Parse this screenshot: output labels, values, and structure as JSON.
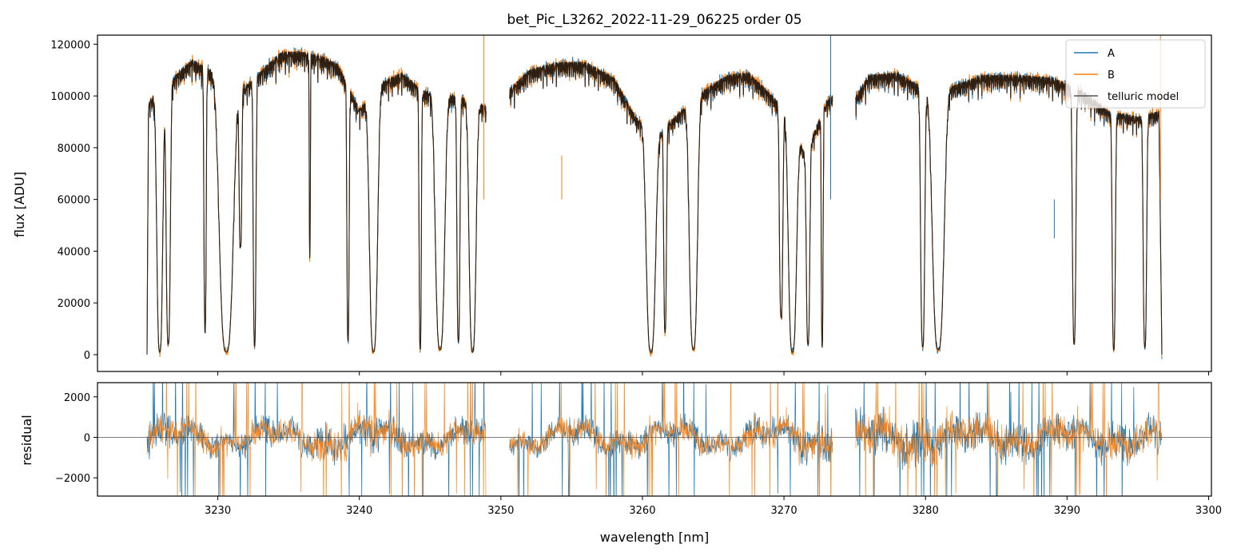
{
  "chart_data": {
    "type": "line",
    "title": "bet_Pic_L3262_2022-11-29_06225  order 05",
    "xlabel": "wavelength [nm]",
    "xlim": [
      3221.5,
      3300.2
    ],
    "xticks": [
      3230,
      3240,
      3250,
      3260,
      3270,
      3280,
      3290,
      3300
    ],
    "colors": {
      "A": "#1f77b4",
      "B": "#ff7f0e",
      "model": "#000000"
    },
    "legend": {
      "placement": "top-right",
      "entries": [
        "A",
        "B",
        "telluric model"
      ]
    },
    "panels": [
      {
        "name": "flux",
        "ylabel": "flux [ADU]",
        "ylim": [
          -6500,
          123500
        ],
        "yticks": [
          0,
          20000,
          40000,
          60000,
          80000,
          100000,
          120000
        ],
        "envelope": [
          [
            3225.0,
            0
          ],
          [
            3225.1,
            97000
          ],
          [
            3225.4,
            100000
          ],
          [
            3225.8,
            96000
          ],
          [
            3227.0,
            108000
          ],
          [
            3228.2,
            114000
          ],
          [
            3229.5,
            110000
          ],
          [
            3230.5,
            108000
          ],
          [
            3232.0,
            104000
          ],
          [
            3233.5,
            112000
          ],
          [
            3234.5,
            117000
          ],
          [
            3236.0,
            117000
          ],
          [
            3237.5,
            115000
          ],
          [
            3238.5,
            112000
          ],
          [
            3240.0,
            95000
          ],
          [
            3241.5,
            105000
          ],
          [
            3243.0,
            109000
          ],
          [
            3244.5,
            102000
          ],
          [
            3246.0,
            101000
          ],
          [
            3247.5,
            99000
          ],
          [
            3248.9,
            96000
          ],
          [
            3250.5,
            102000
          ],
          [
            3252.0,
            110000
          ],
          [
            3254.0,
            113000
          ],
          [
            3256.0,
            113000
          ],
          [
            3258.0,
            107000
          ],
          [
            3259.5,
            92000
          ],
          [
            3261.0,
            85000
          ],
          [
            3262.5,
            93000
          ],
          [
            3264.0,
            101000
          ],
          [
            3266.0,
            108000
          ],
          [
            3267.5,
            109000
          ],
          [
            3269.0,
            101000
          ],
          [
            3270.5,
            92000
          ],
          [
            3271.5,
            77000
          ],
          [
            3273.0,
            98000
          ],
          [
            3273.4,
            100000
          ],
          [
            3275.1,
            100000
          ],
          [
            3276.0,
            108000
          ],
          [
            3278.0,
            109000
          ],
          [
            3280.5,
            101000
          ],
          [
            3282.0,
            104000
          ],
          [
            3284.0,
            108000
          ],
          [
            3286.5,
            108000
          ],
          [
            3289.0,
            107000
          ],
          [
            3291.0,
            102000
          ],
          [
            3293.0,
            94000
          ],
          [
            3295.0,
            92000
          ],
          [
            3296.5,
            94000
          ],
          [
            3296.7,
            0
          ]
        ],
        "absorption_bands": [
          [
            3225.9,
            0.25,
            0.99
          ],
          [
            3226.5,
            0.18,
            0.96
          ],
          [
            3229.1,
            0.1,
            0.92
          ],
          [
            3230.6,
            0.6,
            0.99
          ],
          [
            3231.6,
            0.12,
            0.6
          ],
          [
            3232.6,
            0.12,
            0.97
          ],
          [
            3236.5,
            0.05,
            0.68
          ],
          [
            3239.2,
            0.1,
            0.95
          ],
          [
            3241.0,
            0.35,
            0.99
          ],
          [
            3244.3,
            0.1,
            0.98
          ],
          [
            3245.7,
            0.4,
            0.98
          ],
          [
            3247.0,
            0.13,
            0.95
          ],
          [
            3248.0,
            0.3,
            0.99
          ],
          [
            3260.6,
            0.4,
            0.99
          ],
          [
            3261.6,
            0.12,
            0.9
          ],
          [
            3263.6,
            0.35,
            0.98
          ],
          [
            3269.8,
            0.15,
            0.85
          ],
          [
            3270.6,
            0.35,
            0.99
          ],
          [
            3271.7,
            0.15,
            0.95
          ],
          [
            3272.7,
            0.08,
            0.97
          ],
          [
            3279.8,
            0.18,
            0.97
          ],
          [
            3280.9,
            0.5,
            0.98
          ],
          [
            3290.5,
            0.15,
            0.96
          ],
          [
            3293.3,
            0.14,
            0.98
          ],
          [
            3295.5,
            0.15,
            0.97
          ]
        ],
        "gaps": [
          [
            3248.95,
            3250.6
          ],
          [
            3273.45,
            3275.05
          ]
        ],
        "spikes": [
          [
            3248.8,
            123500
          ],
          [
            3273.3,
            123500
          ],
          [
            3296.6,
            123500
          ],
          [
            3289.1,
            45000
          ],
          [
            3254.3,
            77000
          ]
        ]
      },
      {
        "name": "residual",
        "ylabel": "residual",
        "ylim": [
          -2900,
          2700
        ],
        "yticks": [
          -2000,
          0,
          2000
        ],
        "zero_line": true,
        "noise_sigma": [
          [
            3225.0,
            700
          ],
          [
            3230.0,
            500
          ],
          [
            3235.0,
            600
          ],
          [
            3240.0,
            800
          ],
          [
            3245.0,
            550
          ],
          [
            3248.9,
            500
          ],
          [
            3250.6,
            450
          ],
          [
            3255.0,
            500
          ],
          [
            3260.0,
            550
          ],
          [
            3265.0,
            500
          ],
          [
            3270.0,
            650
          ],
          [
            3273.4,
            800
          ],
          [
            3275.1,
            1000
          ],
          [
            3280.0,
            900
          ],
          [
            3285.0,
            750
          ],
          [
            3290.0,
            700
          ],
          [
            3296.7,
            800
          ]
        ]
      }
    ]
  }
}
